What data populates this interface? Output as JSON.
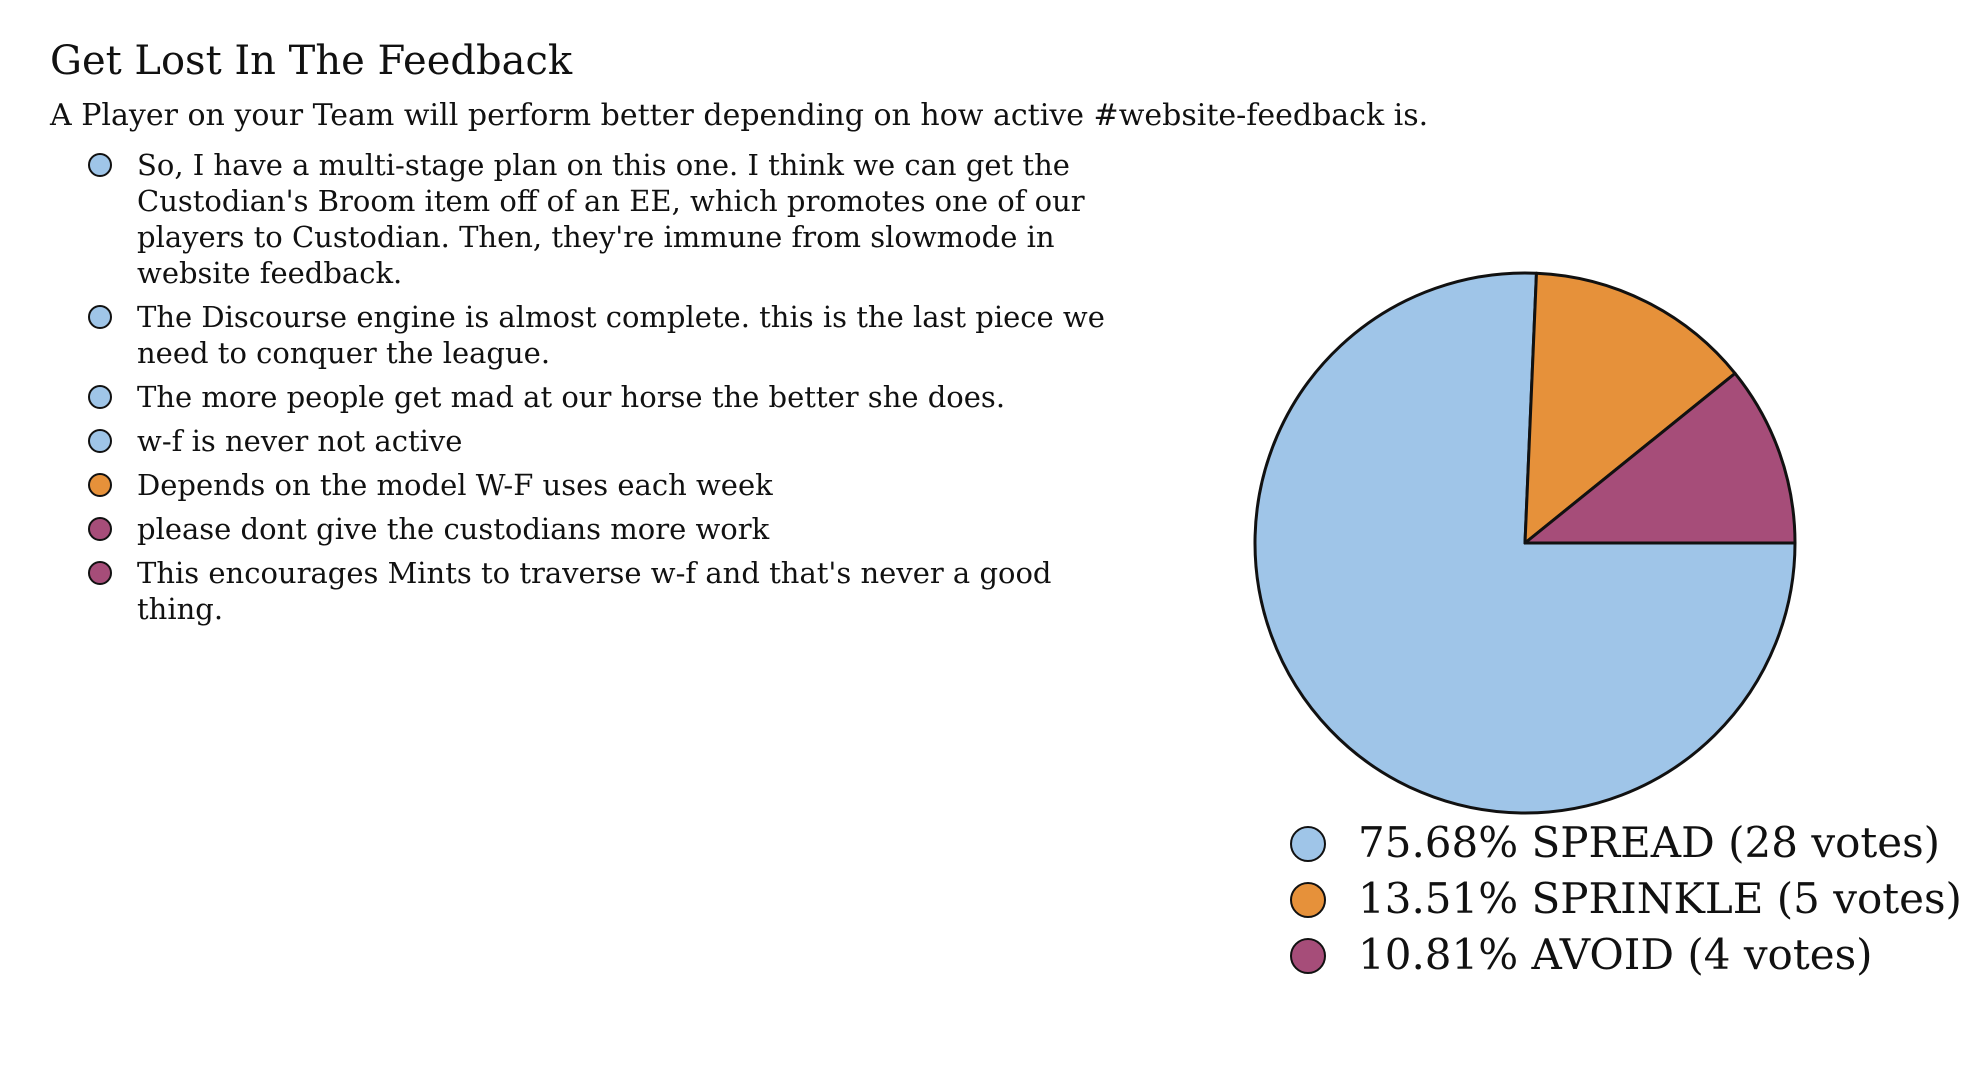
{
  "header": {
    "title": "Get Lost In The Feedback",
    "subtitle": "A Player on your Team will perform better depending on how active #website-feedback is."
  },
  "colors": {
    "spread": "#9fc5e8",
    "sprinkle": "#e6913a",
    "avoid": "#a64d79",
    "outline": "#111111"
  },
  "comments": [
    {
      "text": "So, I have a multi-stage plan on this one. I think we can get the Custodian's Broom item off of an EE, which promotes one of our players to Custodian. Then, they're immune from slowmode in website feedback.",
      "option": "spread"
    },
    {
      "text": "The Discourse engine is almost complete. this is the last piece we need to conquer the league.",
      "option": "spread"
    },
    {
      "text": "The more people get mad at our horse the better she does.",
      "option": "spread"
    },
    {
      "text": "w-f is never not active",
      "option": "spread"
    },
    {
      "text": "Depends on the model W-F uses each week",
      "option": "sprinkle"
    },
    {
      "text": "please dont give the custodians more work",
      "option": "avoid"
    },
    {
      "text": "This encourages Mints to traverse w-f and that's never a good thing.",
      "option": "avoid"
    }
  ],
  "chart_data": {
    "type": "pie",
    "title": "",
    "slices": [
      {
        "key": "spread",
        "label": "75.68% SPREAD (28 votes)",
        "name": "SPREAD",
        "percent": 75.68,
        "votes": 28,
        "color": "#9fc5e8"
      },
      {
        "key": "sprinkle",
        "label": "13.51% SPRINKLE (5 votes)",
        "name": "SPRINKLE",
        "percent": 13.51,
        "votes": 5,
        "color": "#e6913a"
      },
      {
        "key": "avoid",
        "label": "10.81% AVOID (4 votes)",
        "name": "AVOID",
        "percent": 10.81,
        "votes": 4,
        "color": "#a64d79"
      }
    ],
    "legend_position": "bottom"
  }
}
